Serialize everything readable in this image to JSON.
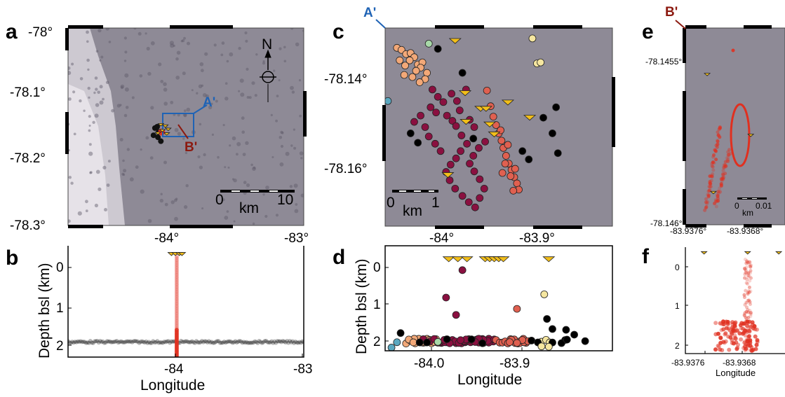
{
  "colors": {
    "map_background": "#8e8a96",
    "section_a_blue": "#1f63b5",
    "section_b_red": "#8c1a10",
    "station_yellow": "#f2be1a",
    "event_red": "#e03020",
    "cluster_peach": "#f2a878",
    "cluster_maroon": "#8a1040",
    "cluster_salmon": "#e06050",
    "cluster_cream": "#f5e6a0",
    "cluster_green": "#a8d8a8",
    "cluster_teal": "#5aa8c0",
    "cluster_black": "#000000"
  },
  "labels": {
    "panel_a": "a",
    "panel_b": "b",
    "panel_c": "c",
    "panel_d": "d",
    "panel_e": "e",
    "panel_f": "f",
    "section_a": "A'",
    "section_b": "B'",
    "north": "N",
    "scale_unit": "km",
    "scale_a_start": "0",
    "scale_a_end": "10",
    "scale_c_start": "0",
    "scale_c_end": "1",
    "scale_e_start": "0",
    "scale_e_end": "0.01",
    "ylabel_depth": "Depth bsl (km)",
    "xlabel_lon": "Longitude"
  },
  "chart_data": [
    {
      "panel": "a",
      "type": "scatter",
      "xlim": [
        -84.6,
        -83.0
      ],
      "ylim": [
        -78.3,
        -78.0
      ],
      "x_ticks": [
        "-84°",
        "-83°"
      ],
      "y_ticks": [
        "-78°",
        "-78.1°",
        "-78.2°",
        "-78.3°"
      ],
      "stations": [
        {
          "lon": -83.97,
          "lat": -78.147
        },
        {
          "lon": -83.94,
          "lat": -78.149
        },
        {
          "lon": -83.96,
          "lat": -78.156
        },
        {
          "lon": -83.92,
          "lat": -78.154
        },
        {
          "lon": -83.99,
          "lat": -78.16
        },
        {
          "lon": -83.93,
          "lat": -78.161
        }
      ],
      "events": [
        {
          "lon": -84.01,
          "lat": -78.152
        },
        {
          "lon": -83.985,
          "lat": -78.158
        },
        {
          "lon": -84.02,
          "lat": -78.163
        },
        {
          "lon": -83.99,
          "lat": -78.166
        },
        {
          "lon": -83.97,
          "lat": -78.172
        },
        {
          "lon": -83.995,
          "lat": -78.15
        }
      ],
      "inset_box": {
        "lon_min": -84.04,
        "lon_max": -83.84,
        "lat_max": -78.135,
        "lat_min": -78.18
      },
      "north_arrow": true,
      "grid": false
    },
    {
      "panel": "b",
      "type": "scatter",
      "xlim": [
        -84.8,
        -83.0
      ],
      "ylim": [
        2.2,
        -0.2
      ],
      "x_ticks": [
        "-84",
        "-83"
      ],
      "y_ticks": [
        "0",
        "1",
        "2"
      ],
      "xlabel": "Longitude",
      "ylabel": "Depth bsl (km)",
      "stations": [
        {
          "lon": -84.01,
          "depth": -0.05
        },
        {
          "lon": -83.98,
          "depth": -0.05
        },
        {
          "lon": -83.95,
          "depth": -0.05
        },
        {
          "lon": -83.93,
          "depth": -0.05
        }
      ],
      "event_column": {
        "lon": -83.97,
        "depth_min": 0.0,
        "depth_max": 2.2
      },
      "deep_band": {
        "depth": 1.87,
        "lon_min": -84.8,
        "lon_max": -83.0
      }
    },
    {
      "panel": "c",
      "type": "scatter",
      "xlim": [
        -84.04,
        -83.79
      ],
      "ylim": [
        -78.168,
        -78.13
      ],
      "x_ticks": [
        "-84°",
        "-83.9°"
      ],
      "y_ticks": [
        "-78.14°",
        "-78.16°"
      ],
      "stations": [
        {
          "lon": -83.963,
          "lat": -78.1325
        },
        {
          "lon": -83.952,
          "lat": -78.1425
        },
        {
          "lon": -83.935,
          "lat": -78.1455
        },
        {
          "lon": -83.929,
          "lat": -78.1455
        },
        {
          "lon": -83.905,
          "lat": -78.1443
        },
        {
          "lon": -83.881,
          "lat": -78.1472
        },
        {
          "lon": -83.951,
          "lat": -78.148
        },
        {
          "lon": -83.925,
          "lat": -78.1485
        },
        {
          "lon": -83.92,
          "lat": -78.1504
        },
        {
          "lon": -83.971,
          "lat": -78.1582
        }
      ],
      "clusters": [
        {
          "name": "peach",
          "points": [
            [
              -84.027,
              -78.1338
            ],
            [
              -84.022,
              -78.1342
            ],
            [
              -84.017,
              -78.135
            ],
            [
              -84.012,
              -78.1348
            ],
            [
              -84.008,
              -78.1356
            ],
            [
              -84.013,
              -78.1362
            ],
            [
              -84.004,
              -78.137
            ],
            [
              -83.999,
              -78.1366
            ],
            [
              -84.001,
              -78.1376
            ],
            [
              -84.006,
              -78.1382
            ],
            [
              -83.994,
              -78.1386
            ],
            [
              -84.018,
              -78.1372
            ],
            [
              -84.024,
              -78.1362
            ],
            [
              -84.01,
              -78.1394
            ],
            [
              -84.019,
              -78.139
            ],
            [
              -83.996,
              -78.1398
            ],
            [
              -84.002,
              -78.1404
            ]
          ]
        },
        {
          "name": "maroon",
          "points": [
            [
              -83.988,
              -78.1418
            ],
            [
              -83.982,
              -78.1432
            ],
            [
              -83.976,
              -78.1442
            ],
            [
              -83.99,
              -78.1452
            ],
            [
              -83.984,
              -78.1462
            ],
            [
              -83.972,
              -78.1468
            ],
            [
              -83.966,
              -78.1478
            ],
            [
              -83.958,
              -78.1458
            ],
            [
              -83.962,
              -78.1488
            ],
            [
              -83.956,
              -78.1506
            ],
            [
              -83.95,
              -78.1522
            ],
            [
              -83.957,
              -78.1536
            ],
            [
              -83.962,
              -78.155
            ],
            [
              -83.968,
              -78.1562
            ],
            [
              -83.973,
              -78.1576
            ],
            [
              -83.969,
              -78.1592
            ],
            [
              -83.963,
              -78.1608
            ],
            [
              -83.955,
              -78.1622
            ],
            [
              -83.948,
              -78.1634
            ],
            [
              -83.941,
              -78.1644
            ],
            [
              -83.936,
              -78.1626
            ],
            [
              -83.931,
              -78.1608
            ],
            [
              -83.936,
              -78.159
            ],
            [
              -83.942,
              -78.1575
            ],
            [
              -83.947,
              -78.156
            ],
            [
              -83.943,
              -78.1545
            ],
            [
              -83.937,
              -78.153
            ],
            [
              -83.93,
              -78.1518
            ],
            [
              -84.001,
              -78.1468
            ],
            [
              -84.008,
              -78.148
            ],
            [
              -83.996,
              -78.149
            ],
            [
              -83.992,
              -78.1508
            ],
            [
              -83.985,
              -78.1522
            ],
            [
              -83.979,
              -78.1536
            ],
            [
              -83.961,
              -78.144
            ],
            [
              -83.967,
              -78.1426
            ],
            [
              -83.942,
              -78.149
            ],
            [
              -83.947,
              -78.1476
            ],
            [
              -83.951,
              -78.1418
            ]
          ]
        },
        {
          "name": "salmon",
          "points": [
            [
              -83.928,
              -78.142
            ],
            [
              -83.924,
              -78.145
            ],
            [
              -83.921,
              -78.147
            ],
            [
              -83.918,
              -78.1486
            ],
            [
              -83.915,
              -78.1502
            ],
            [
              -83.912,
              -78.1516
            ],
            [
              -83.91,
              -78.153
            ],
            [
              -83.907,
              -78.1545
            ],
            [
              -83.904,
              -78.156
            ],
            [
              -83.901,
              -78.1572
            ],
            [
              -83.898,
              -78.1586
            ],
            [
              -83.895,
              -78.1598
            ],
            [
              -83.902,
              -78.1584
            ],
            [
              -83.897,
              -78.157
            ],
            [
              -83.908,
              -78.156
            ],
            [
              -83.911,
              -78.1578
            ],
            [
              -83.893,
              -78.161
            ],
            [
              -83.899,
              -78.1612
            ],
            [
              -83.905,
              -78.1524
            ],
            [
              -83.913,
              -78.1496
            ]
          ]
        },
        {
          "name": "cream",
          "points": [
            [
              -83.878,
              -78.132
            ],
            [
              -83.873,
              -78.1368
            ],
            [
              -83.869,
              -78.1366
            ]
          ]
        },
        {
          "name": "green",
          "points": [
            [
              -83.992,
              -78.133
            ]
          ]
        },
        {
          "name": "teal",
          "points": [
            [
              -84.037,
              -78.144
            ]
          ]
        },
        {
          "name": "black",
          "points": [
            [
              -83.982,
              -78.134
            ],
            [
              -84.012,
              -78.1502
            ],
            [
              -84.004,
              -78.152
            ],
            [
              -83.955,
              -78.1386
            ],
            [
              -83.889,
              -78.1536
            ],
            [
              -83.866,
              -78.1472
            ],
            [
              -83.852,
              -78.1452
            ],
            [
              -83.856,
              -78.1502
            ],
            [
              -83.85,
              -78.154
            ],
            [
              -83.943,
              -78.1512
            ],
            [
              -83.882,
              -78.1552
            ]
          ]
        }
      ]
    },
    {
      "panel": "d",
      "type": "scatter",
      "xlim": [
        -84.05,
        -83.8
      ],
      "ylim": [
        2.12,
        -0.45
      ],
      "x_ticks": [
        "-84.0",
        "-83.9"
      ],
      "y_ticks": [
        "0",
        "1",
        "2"
      ],
      "xlabel": "Longitude",
      "ylabel": "Depth bsl (km)",
      "stations": [
        {
          "lon": -83.98,
          "depth": -0.15
        },
        {
          "lon": -83.97,
          "depth": -0.15
        },
        {
          "lon": -83.96,
          "depth": -0.15
        },
        {
          "lon": -83.94,
          "depth": -0.15
        },
        {
          "lon": -83.935,
          "depth": -0.15
        },
        {
          "lon": -83.93,
          "depth": -0.15
        },
        {
          "lon": -83.925,
          "depth": -0.15
        },
        {
          "lon": -83.92,
          "depth": -0.15
        },
        {
          "lon": -83.87,
          "depth": -0.15
        }
      ],
      "band_depth": 1.88
    },
    {
      "panel": "e",
      "type": "scatter",
      "xlim": [
        -83.938,
        -83.9364
      ],
      "ylim": [
        -78.146,
        -78.14545
      ],
      "x_ticks": [
        "-83.9376°",
        "-83.9368°"
      ],
      "y_ticks": [
        "-78.1455°",
        "-78.146°"
      ],
      "stations": [
        {
          "lon": -83.93765,
          "lat": -78.14558
        },
        {
          "lon": -83.93695,
          "lat": -78.14575
        },
        {
          "lon": -83.93755,
          "lat": -78.14591
        }
      ],
      "ellipse": {
        "lon": -83.937,
        "lat": -78.14572
      }
    },
    {
      "panel": "f",
      "type": "scatter",
      "xlim": [
        -83.938,
        -83.9364
      ],
      "ylim": [
        2.25,
        -0.2
      ],
      "x_ticks": [
        "-83.9376",
        "-83.9368"
      ],
      "y_ticks": [
        "0",
        "1",
        "2"
      ],
      "xlabel": "Longitude",
      "stations": [
        {
          "lon": -83.9377,
          "depth": -0.1
        },
        {
          "lon": -83.937,
          "depth": -0.1
        },
        {
          "lon": -83.9365,
          "depth": -0.1
        }
      ]
    }
  ]
}
